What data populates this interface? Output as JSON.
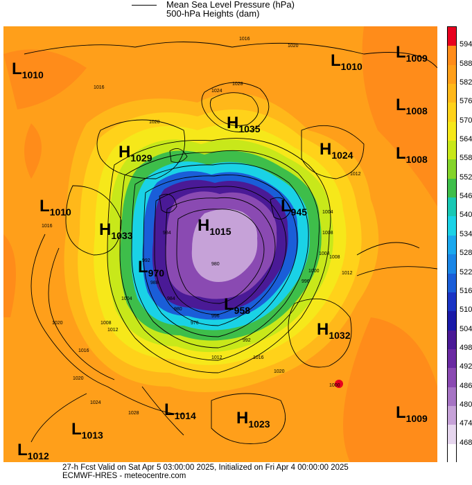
{
  "legend": {
    "line1": "Mean Sea Level Pressure (hPa)",
    "line2": "500-hPa Heights (dam)"
  },
  "colorbar": {
    "levels": [
      "594",
      "588",
      "582",
      "576",
      "570",
      "564",
      "558",
      "552",
      "546",
      "540",
      "534",
      "528",
      "522",
      "516",
      "510",
      "504",
      "498",
      "492",
      "486",
      "480",
      "474",
      "468"
    ],
    "colors": [
      "#e8001f",
      "#ff8c1a",
      "#ff9f1a",
      "#ffb81a",
      "#ffd21a",
      "#f6e81a",
      "#c8e81a",
      "#84d42a",
      "#3ebe4a",
      "#18c8b4",
      "#1ad2e6",
      "#1aa8ee",
      "#1a86e6",
      "#1a5ed8",
      "#1a34c4",
      "#1a1aa8",
      "#4a1a96",
      "#6a2aa2",
      "#8a4ab2",
      "#a674c4",
      "#c6a2d8",
      "#e6d6ee",
      "#ffffff"
    ]
  },
  "pressure_systems": [
    {
      "type": "L",
      "value": "1010"
    },
    {
      "type": "L",
      "value": "1010"
    },
    {
      "type": "L",
      "value": "1009"
    },
    {
      "type": "L",
      "value": "1008"
    },
    {
      "type": "L",
      "value": "1008"
    },
    {
      "type": "H",
      "value": "1035"
    },
    {
      "type": "H",
      "value": "1029"
    },
    {
      "type": "H",
      "value": "1024"
    },
    {
      "type": "L",
      "value": "1010"
    },
    {
      "type": "H",
      "value": "1033"
    },
    {
      "type": "H",
      "value": "1015"
    },
    {
      "type": "L",
      "value": "945"
    },
    {
      "type": "L",
      "value": "970"
    },
    {
      "type": "L",
      "value": "958"
    },
    {
      "type": "H",
      "value": "1032"
    },
    {
      "type": "L",
      "value": "1014"
    },
    {
      "type": "H",
      "value": "1023"
    },
    {
      "type": "L",
      "value": "1013"
    },
    {
      "type": "L",
      "value": "1012"
    },
    {
      "type": "L",
      "value": "1009"
    }
  ],
  "contour_labels": [
    "1016",
    "1020",
    "1024",
    "1028",
    "1016",
    "1020",
    "1012",
    "1016",
    "1020",
    "1008",
    "1004",
    "1000",
    "996",
    "992",
    "988",
    "984",
    "980",
    "976",
    "1012",
    "1016",
    "1020",
    "1024",
    "1028",
    "1004",
    "1008",
    "1012",
    "1016",
    "1020",
    "1000",
    "996",
    "992",
    "984",
    "980",
    "1004",
    "1008",
    "1012"
  ],
  "footer": {
    "line1": "27-h Fcst Valid on Sat Apr  5 03:00:00 2025, Initialized on Fri Apr  4 00:00:00 2025",
    "line2": "ECMWF-HRES  - meteocentre.com"
  }
}
